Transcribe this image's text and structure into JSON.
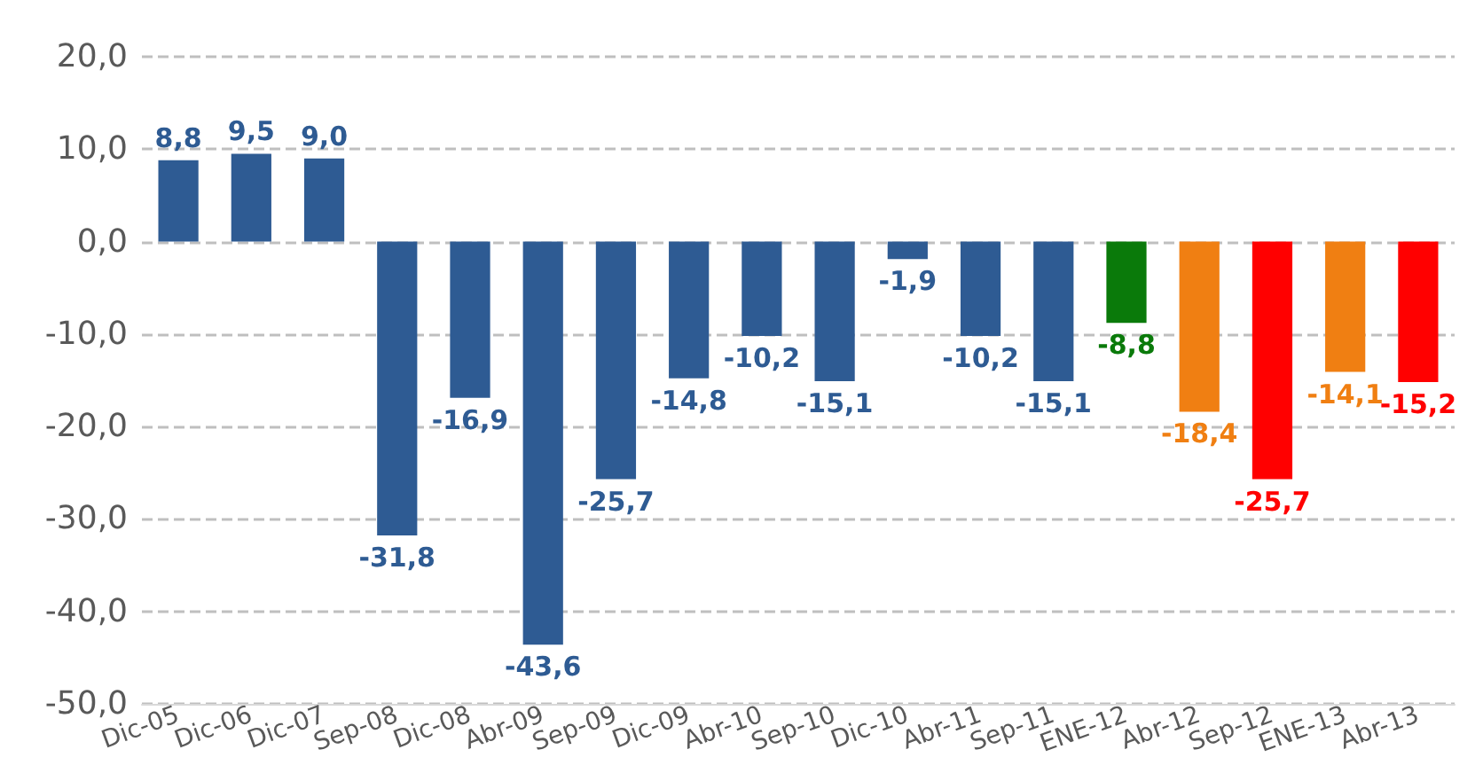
{
  "chart_data": {
    "type": "bar",
    "categories": [
      "Dic-05",
      "Dic-06",
      "Dic-07",
      "Sep-08",
      "Dic-08",
      "Abr-09",
      "Sep-09",
      "Dic-09",
      "Abr-10",
      "Sep-10",
      "Dic-10",
      "Abr-11",
      "Sep-11",
      "ENE-12",
      "Abr-12",
      "Sep-12",
      "ENE-13",
      "Abr-13"
    ],
    "values": [
      8.8,
      9.5,
      9.0,
      -31.8,
      -16.9,
      -43.6,
      -25.7,
      -14.8,
      -10.2,
      -15.1,
      -1.9,
      -10.2,
      -15.1,
      -8.8,
      -18.4,
      -25.7,
      -14.1,
      -15.2
    ],
    "value_labels": [
      "8,8",
      "9,5",
      "9,0",
      "-31,8",
      "-16,9",
      "-43,6",
      "-25,7",
      "-14,8",
      "-10,2",
      "-15,1",
      "-1,9",
      "-10,2",
      "-15,1",
      "-8,8",
      "-18,4",
      "-25,7",
      "-14,1",
      "-15,2"
    ],
    "colors": [
      "#2e5b93",
      "#2e5b93",
      "#2e5b93",
      "#2e5b93",
      "#2e5b93",
      "#2e5b93",
      "#2e5b93",
      "#2e5b93",
      "#2e5b93",
      "#2e5b93",
      "#2e5b93",
      "#2e5b93",
      "#2e5b93",
      "#0a7a0a",
      "#f07f12",
      "#ff0000",
      "#f07f12",
      "#ff0000"
    ],
    "ylim": [
      -50,
      20
    ],
    "yticks": [
      {
        "value": -50,
        "label": "-50,0"
      },
      {
        "value": -40,
        "label": "-40,0"
      },
      {
        "value": -30,
        "label": "-30,0"
      },
      {
        "value": -20,
        "label": "-20,0"
      },
      {
        "value": -10,
        "label": "-10,0"
      },
      {
        "value": 0,
        "label": "0,0"
      },
      {
        "value": 10,
        "label": "10,0"
      },
      {
        "value": 20,
        "label": "20,0"
      }
    ],
    "grid": "y"
  }
}
